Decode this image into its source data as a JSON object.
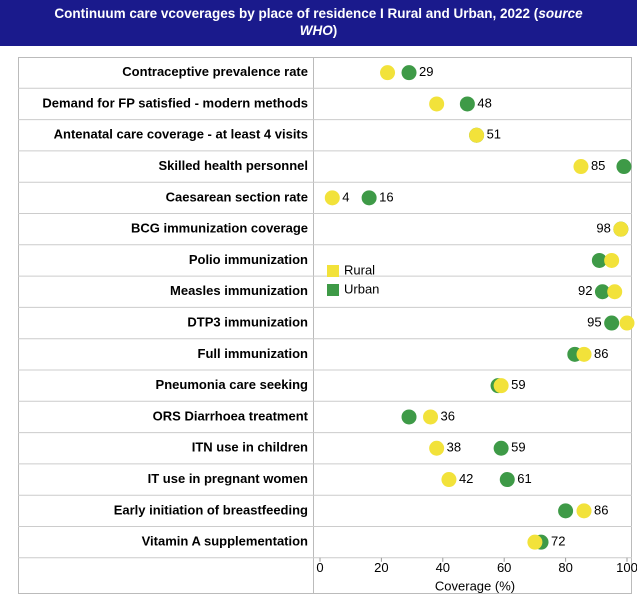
{
  "chart_data": {
    "type": "dot",
    "title_parts": [
      "Continuum care vcoverages by place of residence  I Rural and Urban, 2022 (",
      "source",
      "WHO",
      ")"
    ],
    "x_label": "Coverage (%)",
    "categories": [
      "Contraceptive prevalence rate",
      "Demand for FP satisfied - modern methods",
      "Antenatal care coverage - at least 4 visits",
      "Skilled health personnel",
      "Caesarean section rate",
      "BCG immunization coverage",
      "Polio immunization",
      "Measles immunization",
      "DTP3 immunization",
      "Full immunization",
      "Pneumonia care seeking",
      "ORS Diarrhoea treatment",
      "ITN use in children",
      "IT use in pregnant women",
      "Early initiation of breastfeeding",
      "Vitamin A supplementation"
    ],
    "series": [
      {
        "name": "Rural",
        "color": "#f2e23a",
        "values": [
          22,
          38,
          51,
          85,
          4,
          98,
          95,
          96,
          100,
          86,
          59,
          36,
          38,
          42,
          86,
          70
        ],
        "value_labels": [
          null,
          null,
          "51",
          "85",
          "4",
          "98",
          null,
          null,
          null,
          "86",
          "59",
          "36",
          "38",
          "42",
          "86",
          null
        ]
      },
      {
        "name": "Urban",
        "color": "#3e9a47",
        "values": [
          29,
          48,
          51,
          99,
          16,
          98,
          91,
          92,
          95,
          83,
          58,
          29,
          59,
          61,
          80,
          72
        ],
        "value_labels": [
          "29",
          "48",
          null,
          null,
          "16",
          null,
          null,
          "92",
          "95",
          null,
          null,
          null,
          "59",
          "61",
          null,
          "72"
        ]
      }
    ],
    "xlim": [
      0,
      100
    ],
    "xticks": [
      0,
      20,
      40,
      60,
      80,
      100
    ],
    "grid": true,
    "legend": "middle left"
  }
}
